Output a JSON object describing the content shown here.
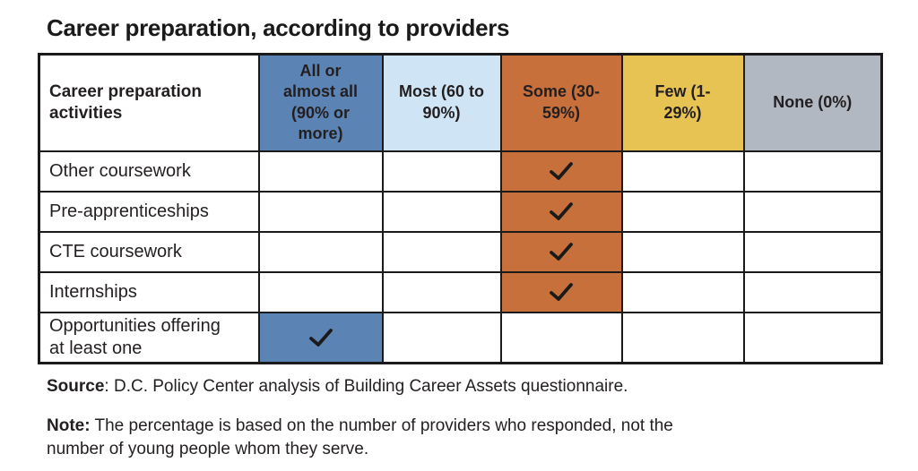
{
  "title": "Career preparation, according to providers",
  "colors": {
    "all": "#5b83b4",
    "most": "#cfe5f6",
    "some": "#c7703c",
    "few": "#e7c354",
    "none": "#b2b8c1",
    "border": "#1a1a1a",
    "check": "#1a1a1a",
    "text": "#231f20"
  },
  "table": {
    "header": {
      "row_label": "Career preparation activities",
      "row_label_display": "Career preparation\nactivities",
      "columns": [
        {
          "key": "all",
          "label": "All or almost all (90% or more)",
          "display": "All or\nalmost all\n(90% or\nmore)"
        },
        {
          "key": "most",
          "label": "Most (60 to 90%)",
          "display": "Most (60 to\n90%)"
        },
        {
          "key": "some",
          "label": "Some (30-59%)",
          "display": "Some (30-\n59%)"
        },
        {
          "key": "few",
          "label": "Few (1-29%)",
          "display": "Few (1-\n29%)"
        },
        {
          "key": "none",
          "label": "None (0%)",
          "display": "None (0%)"
        }
      ]
    },
    "rows": [
      {
        "label": "Other coursework",
        "display": "Other coursework",
        "checked": "some"
      },
      {
        "label": "Pre-apprenticeships",
        "display": "Pre-apprenticeships",
        "checked": "some"
      },
      {
        "label": "CTE coursework",
        "display": "CTE coursework",
        "checked": "some"
      },
      {
        "label": "Internships",
        "display": "Internships",
        "checked": "some"
      },
      {
        "label": "Opportunities offering at least one",
        "display": "Opportunities offering\nat least one",
        "checked": "all"
      }
    ]
  },
  "source": {
    "label": "Source",
    "rest": ": D.C. Policy Center analysis of Building Career Assets questionnaire."
  },
  "note": {
    "label": "Note:",
    "rest": " The percentage is based on the number of providers who responded, not the\nnumber of young people whom they serve."
  },
  "chart_data": {
    "type": "table",
    "title": "Career preparation, according to providers",
    "columns": [
      "Career preparation activities",
      "All or almost all (90% or more)",
      "Most (60 to 90%)",
      "Some (30-59%)",
      "Few (1-29%)",
      "None (0%)"
    ],
    "rows": [
      {
        "activity": "Other coursework",
        "selected_bucket": "Some (30-59%)"
      },
      {
        "activity": "Pre-apprenticeships",
        "selected_bucket": "Some (30-59%)"
      },
      {
        "activity": "CTE coursework",
        "selected_bucket": "Some (30-59%)"
      },
      {
        "activity": "Internships",
        "selected_bucket": "Some (30-59%)"
      },
      {
        "activity": "Opportunities offering at least one",
        "selected_bucket": "All or almost all (90% or more)"
      }
    ],
    "cell_marker": "checkmark",
    "column_colors": [
      "#ffffff",
      "#5b83b4",
      "#cfe5f6",
      "#c7703c",
      "#e7c354",
      "#b2b8c1"
    ],
    "source": "Source: D.C. Policy Center analysis of Building Career Assets questionnaire.",
    "note": "Note: The percentage is based on the number of providers who responded, not the number of young people whom they serve.",
    "legend_position": "none",
    "grid": "table-borders"
  }
}
